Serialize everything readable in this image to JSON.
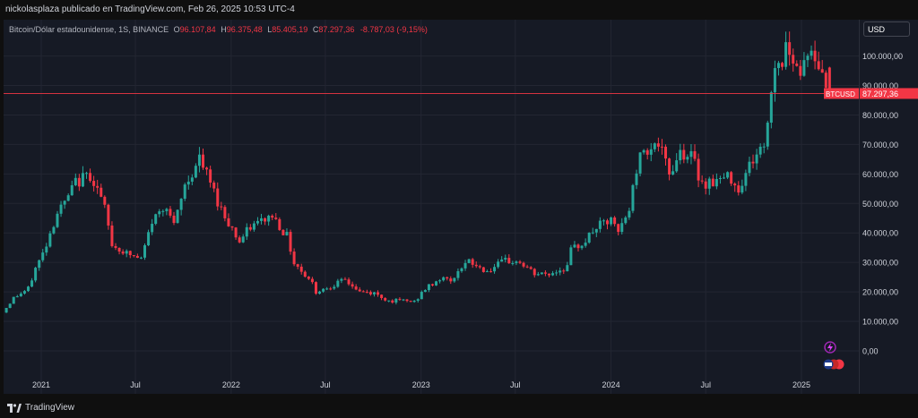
{
  "header": {
    "published_by": "nickolasplaza publicado en TradingView.com, Feb 26, 2025 10:53 UTC-4"
  },
  "legend": {
    "symbol": "Bitcoin/Dólar estadounidense, 1S, BINANCE",
    "open_label": "O",
    "open": "96.107,84",
    "high_label": "H",
    "high": "96.375,48",
    "low_label": "L",
    "low": "85.405,19",
    "close_label": "C",
    "close": "87.297,36",
    "change": "-8.787,03 (-9,15%)"
  },
  "currency_button": "USD",
  "footer": {
    "brand": "TradingView"
  },
  "colors": {
    "up": "#26a69a",
    "down": "#f23645",
    "background": "#161a25",
    "grid": "#232632"
  },
  "chart_data": {
    "type": "candlestick",
    "symbol": "BTCUSD",
    "interval": "1S",
    "last_price_label": "87.297,36",
    "last_price": 87297.36,
    "y_ticks": [
      "0,00",
      "10.000,00",
      "20.000,00",
      "30.000,00",
      "40.000,00",
      "50.000,00",
      "60.000,00",
      "70.000,00",
      "80.000,00",
      "90.000,00",
      "100.000,00"
    ],
    "y_values": [
      0,
      10000,
      20000,
      30000,
      40000,
      50000,
      60000,
      70000,
      80000,
      90000,
      100000
    ],
    "x_ticks": [
      "2021",
      "Jul",
      "2022",
      "Jul",
      "2023",
      "Jul",
      "2024",
      "Jul",
      "2025"
    ],
    "x_tick_dates": [
      "2021-01-01",
      "2021-07-01",
      "2022-01-01",
      "2022-07-01",
      "2023-01-01",
      "2023-07-01",
      "2024-01-01",
      "2024-07-01",
      "2025-01-01"
    ],
    "grid": true,
    "price_path": [
      [
        "2020-10-26",
        13000
      ],
      [
        "2020-11-16",
        18000
      ],
      [
        "2020-12-14",
        21000
      ],
      [
        "2020-12-28",
        28000
      ],
      [
        "2021-01-11",
        33000
      ],
      [
        "2021-02-08",
        47000
      ],
      [
        "2021-02-22",
        50000
      ],
      [
        "2021-03-15",
        57000
      ],
      [
        "2021-04-12",
        60000
      ],
      [
        "2021-04-26",
        55000
      ],
      [
        "2021-05-10",
        48000
      ],
      [
        "2021-05-24",
        36000
      ],
      [
        "2021-06-21",
        33000
      ],
      [
        "2021-07-19",
        31000
      ],
      [
        "2021-08-09",
        44000
      ],
      [
        "2021-09-06",
        50000
      ],
      [
        "2021-09-20",
        42000
      ],
      [
        "2021-10-11",
        56000
      ],
      [
        "2021-11-08",
        65000
      ],
      [
        "2021-11-29",
        57000
      ],
      [
        "2021-12-20",
        48000
      ],
      [
        "2022-01-24",
        37000
      ],
      [
        "2022-02-14",
        42000
      ],
      [
        "2022-03-28",
        46000
      ],
      [
        "2022-04-25",
        39000
      ],
      [
        "2022-05-09",
        30000
      ],
      [
        "2022-06-13",
        23000
      ],
      [
        "2022-06-20",
        20000
      ],
      [
        "2022-07-18",
        22000
      ],
      [
        "2022-08-15",
        24000
      ],
      [
        "2022-09-12",
        20000
      ],
      [
        "2022-10-10",
        19500
      ],
      [
        "2022-11-07",
        17000
      ],
      [
        "2022-12-05",
        17000
      ],
      [
        "2022-12-26",
        16600
      ],
      [
        "2023-01-16",
        21000
      ],
      [
        "2023-02-13",
        24500
      ],
      [
        "2023-03-13",
        24000
      ],
      [
        "2023-03-20",
        28000
      ],
      [
        "2023-04-10",
        30000
      ],
      [
        "2023-05-15",
        27000
      ],
      [
        "2023-06-19",
        30500
      ],
      [
        "2023-07-17",
        30000
      ],
      [
        "2023-08-14",
        26000
      ],
      [
        "2023-09-11",
        26000
      ],
      [
        "2023-10-16",
        28500
      ],
      [
        "2023-10-23",
        34000
      ],
      [
        "2023-11-20",
        37500
      ],
      [
        "2023-12-11",
        42000
      ],
      [
        "2024-01-08",
        44000
      ],
      [
        "2024-01-22",
        40000
      ],
      [
        "2024-02-12",
        48000
      ],
      [
        "2024-02-26",
        62000
      ],
      [
        "2024-03-11",
        69000
      ],
      [
        "2024-04-08",
        70000
      ],
      [
        "2024-04-29",
        60000
      ],
      [
        "2024-05-20",
        68000
      ],
      [
        "2024-06-10",
        66000
      ],
      [
        "2024-07-01",
        57000
      ],
      [
        "2024-08-05",
        58000
      ],
      [
        "2024-08-26",
        59000
      ],
      [
        "2024-09-09",
        55000
      ],
      [
        "2024-09-30",
        63000
      ],
      [
        "2024-10-14",
        67000
      ],
      [
        "2024-10-28",
        69000
      ],
      [
        "2024-11-11",
        88000
      ],
      [
        "2024-11-18",
        97000
      ],
      [
        "2024-12-02",
        99000
      ],
      [
        "2024-12-16",
        104000
      ],
      [
        "2025-01-06",
        94000
      ],
      [
        "2025-01-20",
        103000
      ],
      [
        "2025-02-03",
        97000
      ],
      [
        "2025-02-17",
        96100
      ],
      [
        "2025-02-24",
        87297
      ]
    ]
  }
}
